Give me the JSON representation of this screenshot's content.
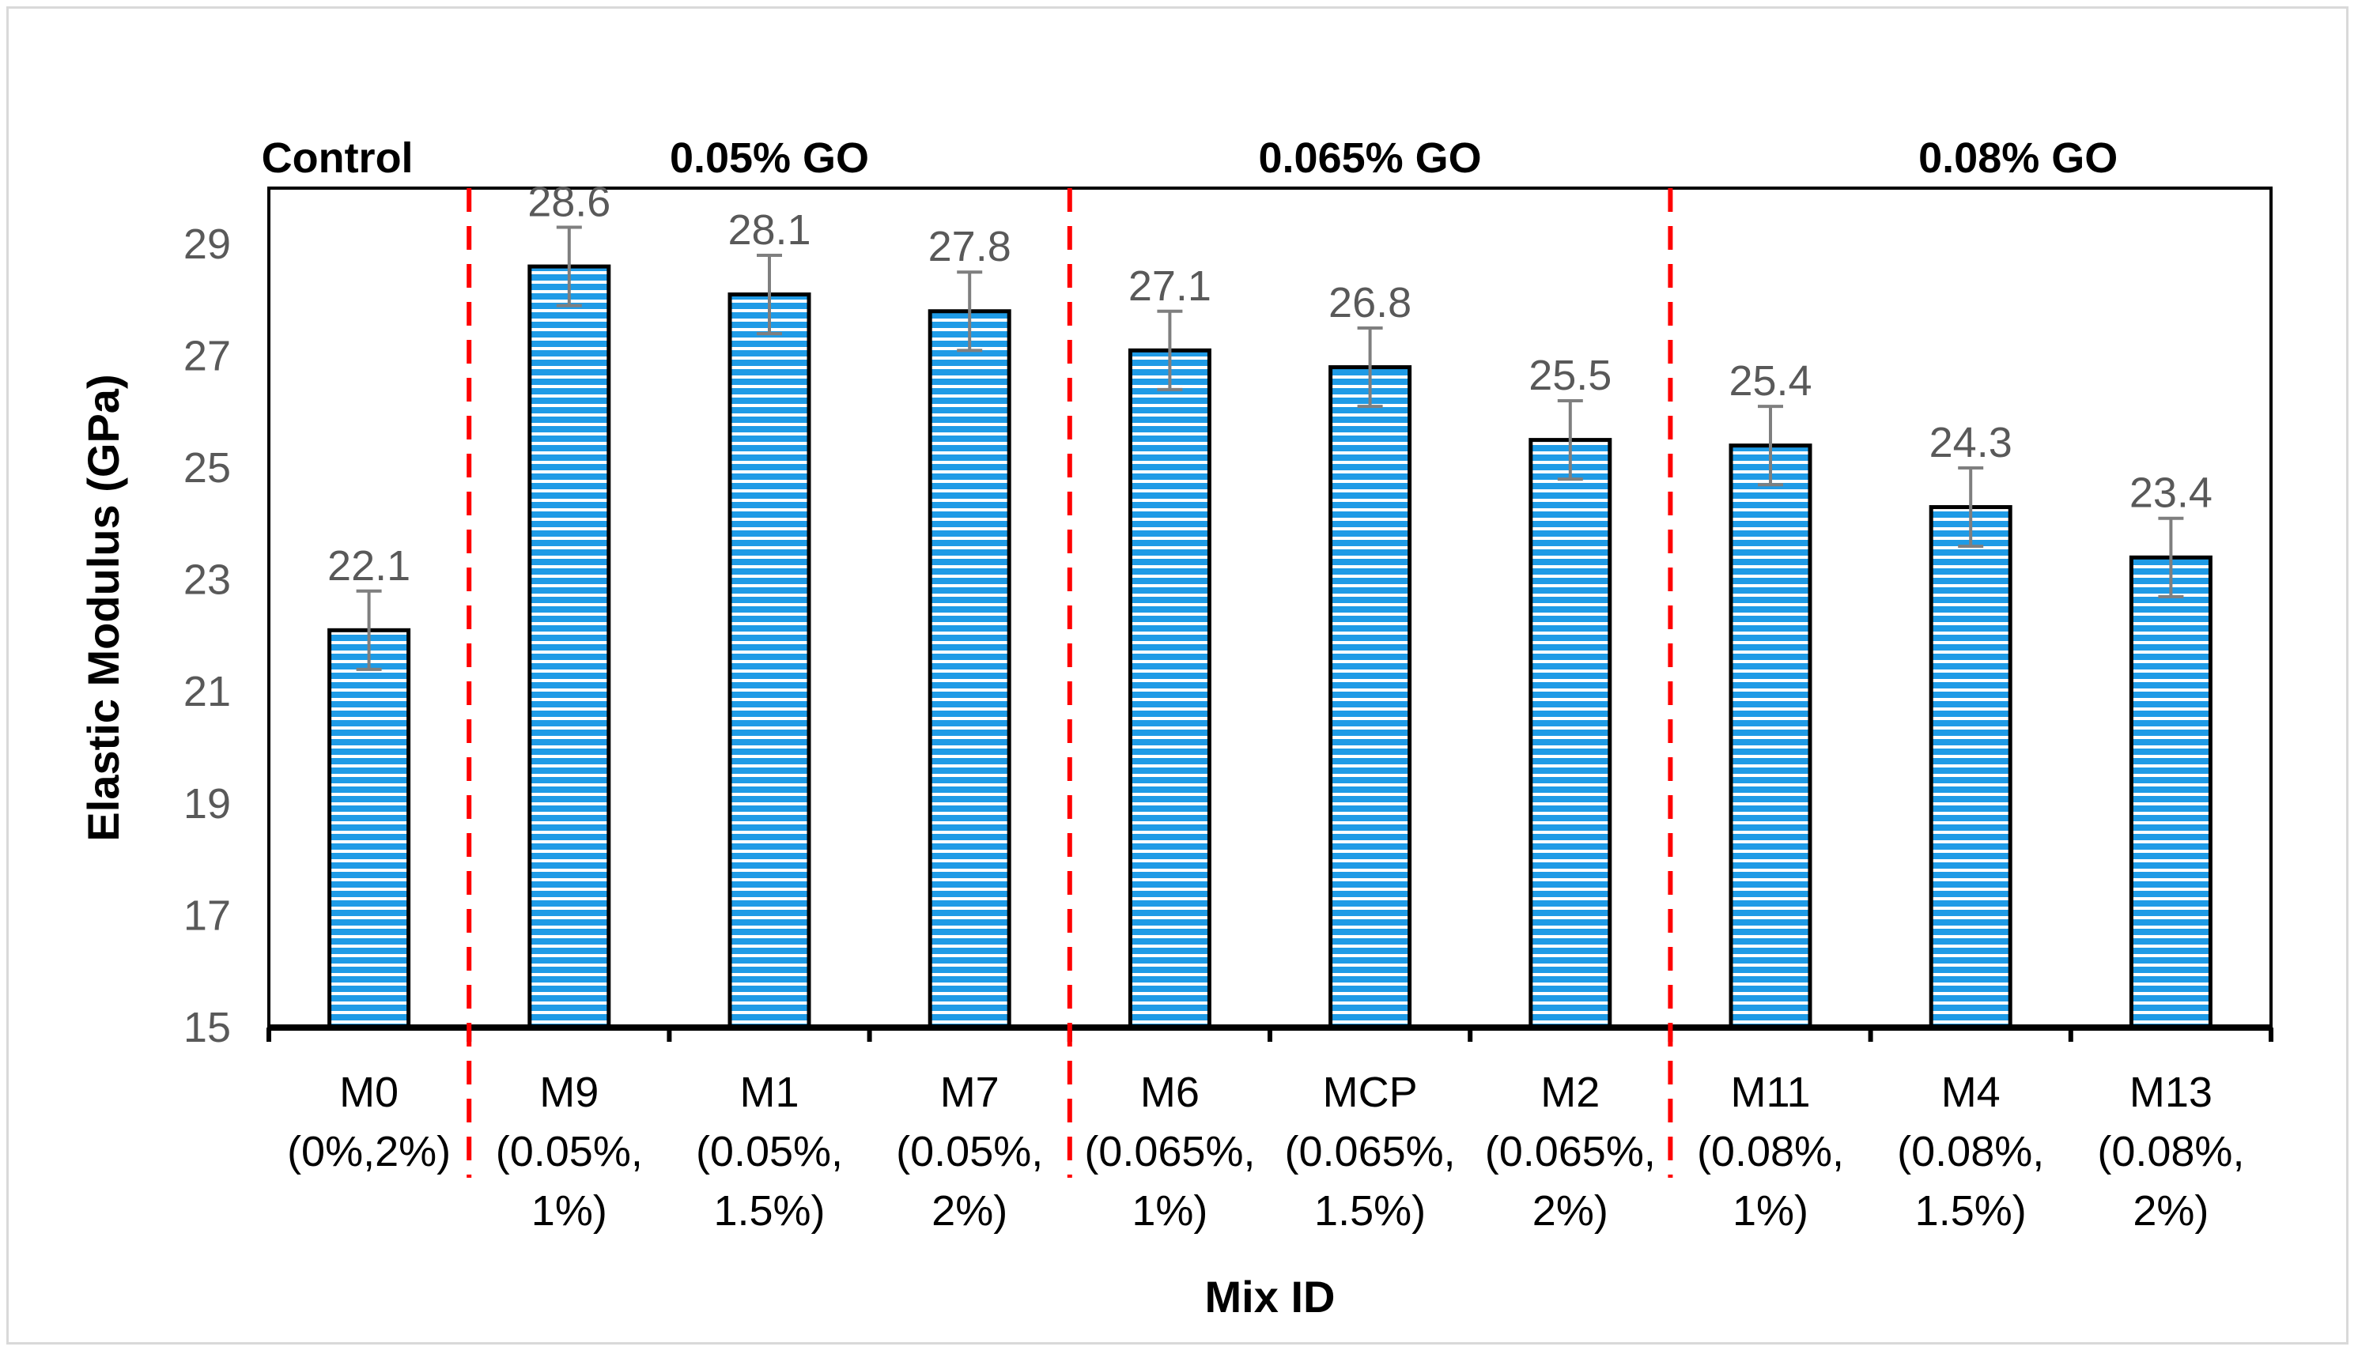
{
  "chart_data": {
    "type": "bar",
    "title": "",
    "xlabel": "Mix ID",
    "ylabel": "Elastic Modulus (GPa)",
    "ylim": [
      15,
      30
    ],
    "yticks": [
      "15",
      "17",
      "19",
      "21",
      "23",
      "25",
      "27",
      "29"
    ],
    "categories": [
      {
        "line1": "M0",
        "line2": "(0%,2%)",
        "line3": ""
      },
      {
        "line1": "M9",
        "line2": "(0.05%,",
        "line3": "1%)"
      },
      {
        "line1": "M1",
        "line2": "(0.05%,",
        "line3": "1.5%)"
      },
      {
        "line1": "M7",
        "line2": "(0.05%,",
        "line3": "2%)"
      },
      {
        "line1": "M6",
        "line2": "(0.065%,",
        "line3": "1%)"
      },
      {
        "line1": "MCP",
        "line2": "(0.065%,",
        "line3": "1.5%)"
      },
      {
        "line1": "M2",
        "line2": "(0.065%,",
        "line3": "2%)"
      },
      {
        "line1": "M11",
        "line2": "(0.08%,",
        "line3": "1%)"
      },
      {
        "line1": "M4",
        "line2": "(0.08%,",
        "line3": "1.5%)"
      },
      {
        "line1": "M13",
        "line2": "(0.08%,",
        "line3": "2%)"
      }
    ],
    "values": [
      22.1,
      28.6,
      28.1,
      27.8,
      27.1,
      26.8,
      25.5,
      25.4,
      24.3,
      23.4
    ],
    "data_labels": [
      "22.1",
      "28.6",
      "28.1",
      "27.8",
      "27.1",
      "26.8",
      "25.5",
      "25.4",
      "24.3",
      "23.4"
    ],
    "error": [
      0.7,
      0.7,
      0.7,
      0.7,
      0.7,
      0.7,
      0.7,
      0.7,
      0.7,
      0.7
    ],
    "groups": [
      {
        "label": "Control",
        "start": 0,
        "end": 0
      },
      {
        "label": "0.05% GO",
        "start": 1,
        "end": 3
      },
      {
        "label": "0.065% GO",
        "start": 4,
        "end": 6
      },
      {
        "label": "0.08% GO",
        "start": 7,
        "end": 9
      }
    ],
    "dividers_after": [
      0,
      3,
      6
    ],
    "colors": {
      "bar_fill": "#1f9be6",
      "bar_stripe": "#ffffff",
      "bar_edge": "#000000",
      "error_bar": "#7f7f7f",
      "divider": "#ff0000",
      "axis": "#000000"
    }
  }
}
